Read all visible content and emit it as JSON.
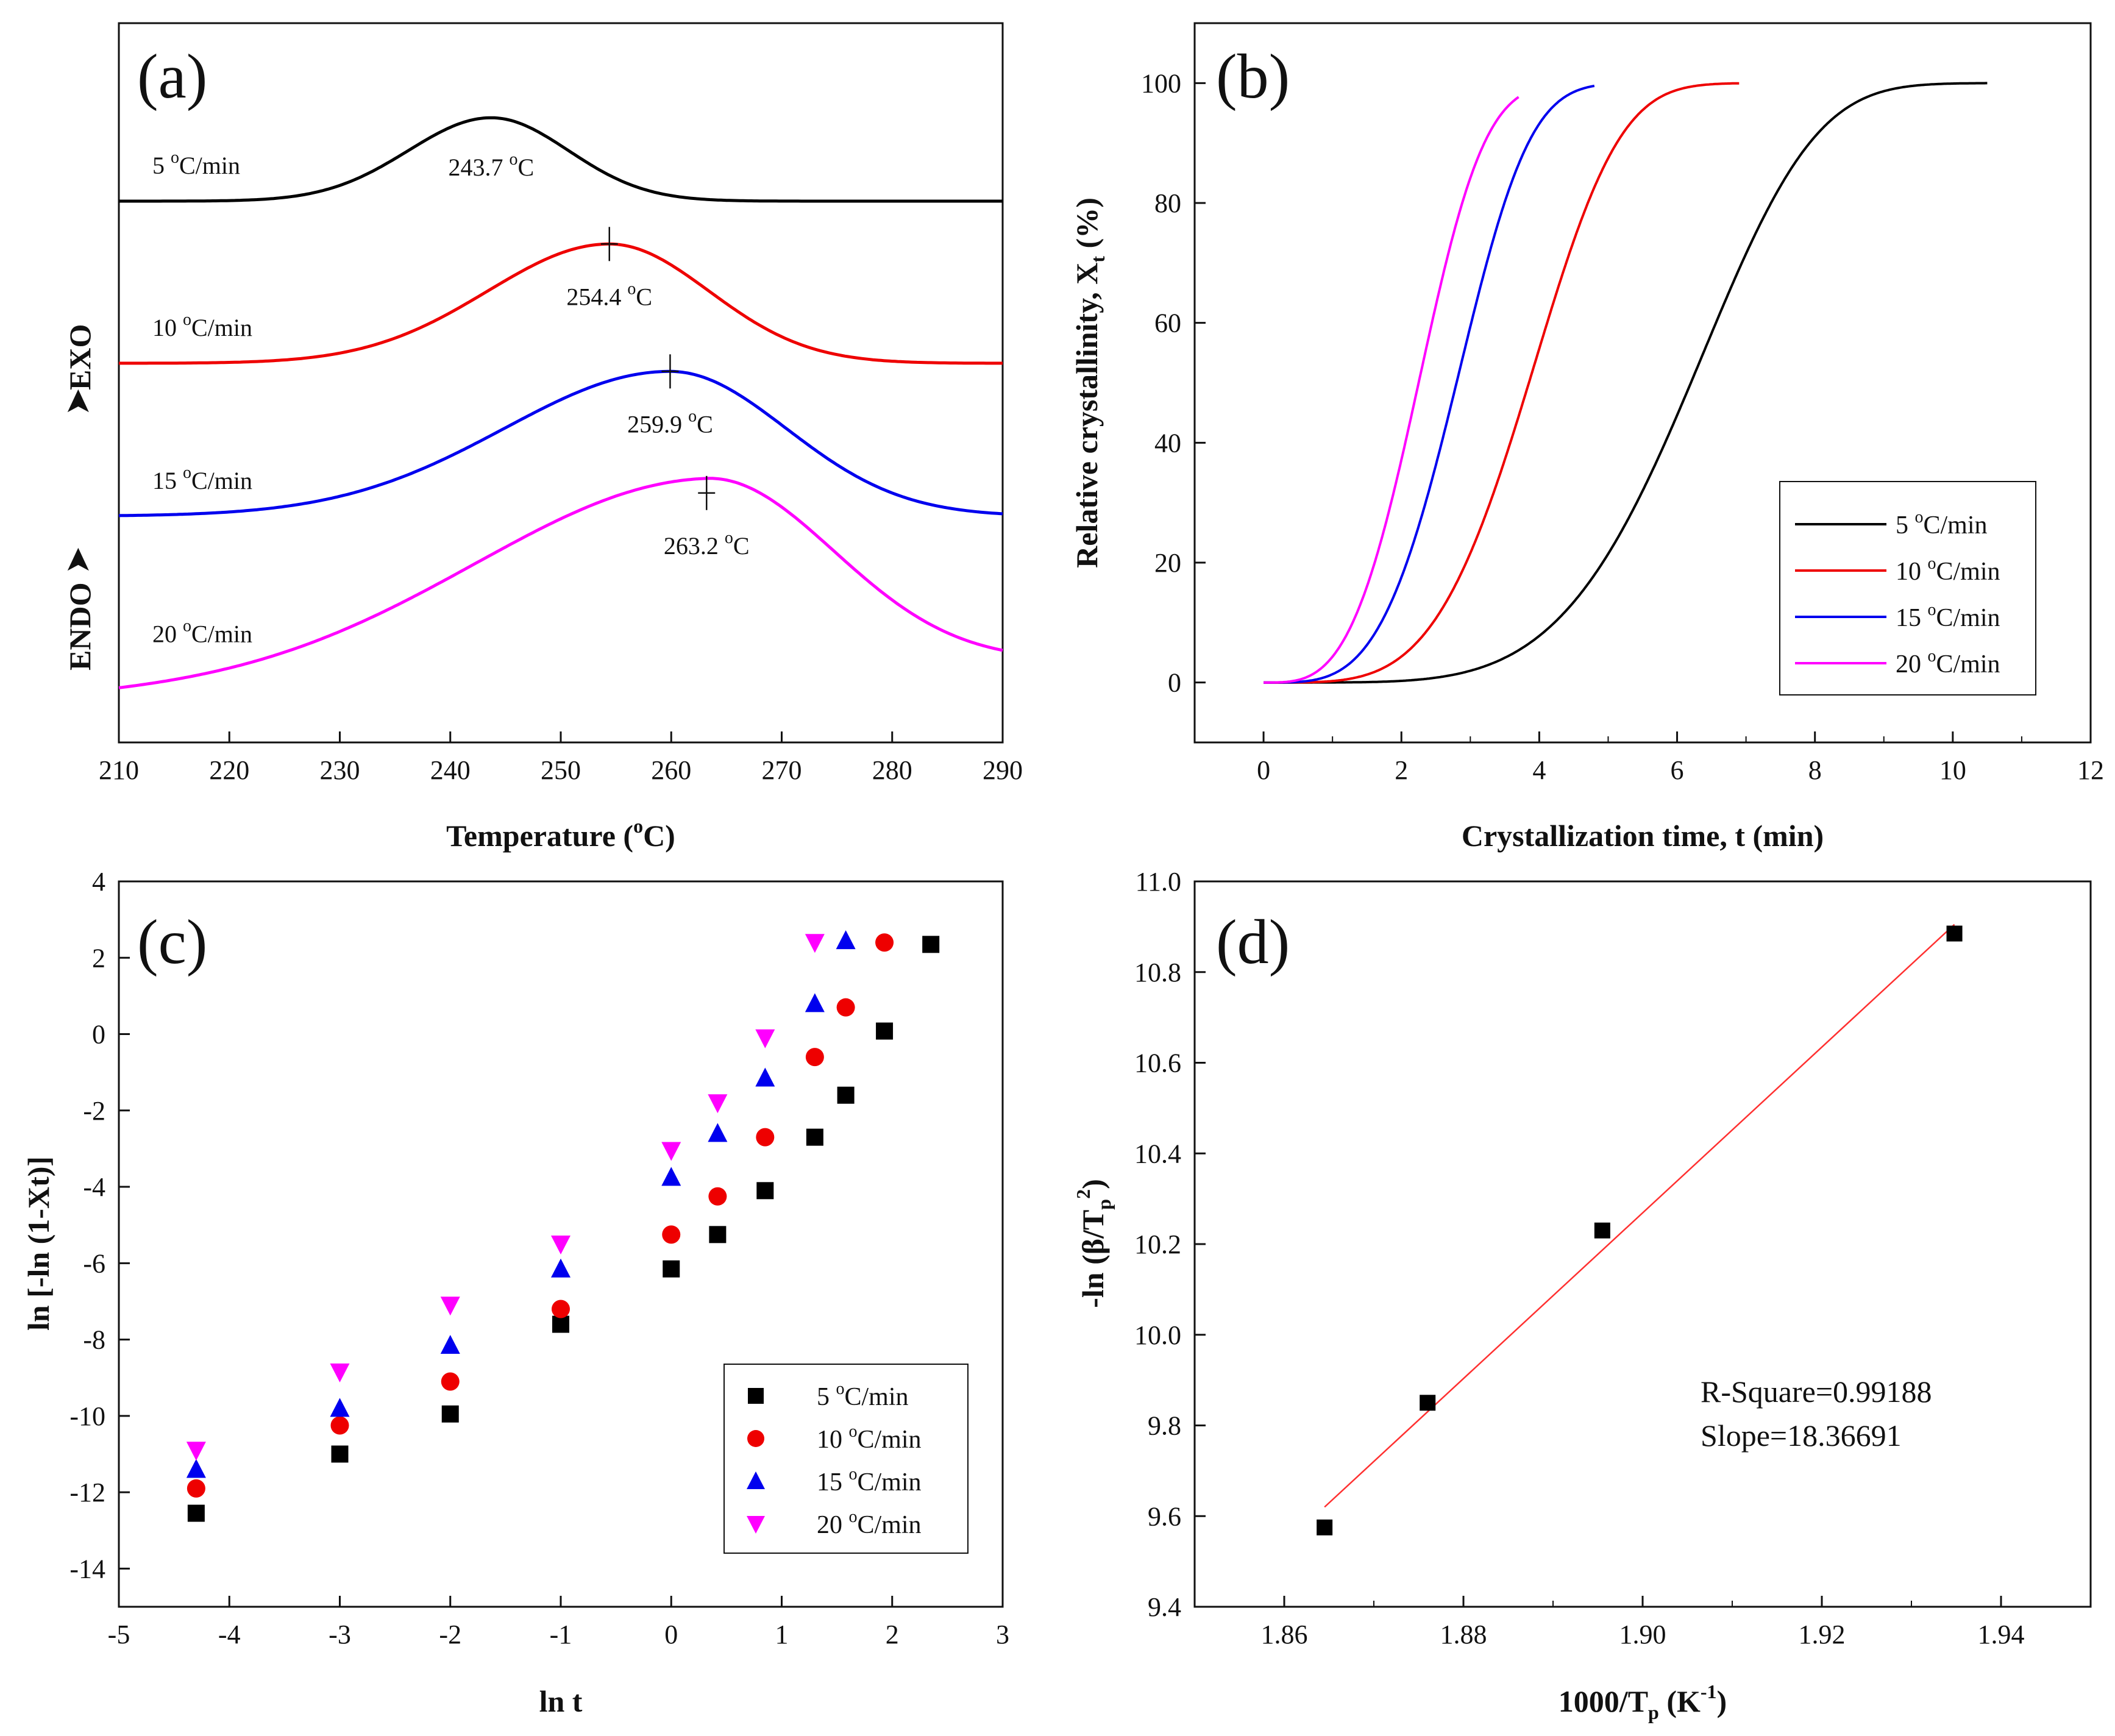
{
  "colors": {
    "5": "#000000",
    "10": "#ee0000",
    "15": "#0000ee",
    "20": "#ff00ff",
    "fit": "#ff3030",
    "axis": "#111111"
  },
  "chart_data": [
    {
      "id": "a",
      "panel_label": "(a)",
      "type": "line",
      "title": "",
      "xlabel": "Temperature (oC)",
      "ylabel": "",
      "xlim": [
        210,
        290
      ],
      "xticks": [
        "210",
        "220",
        "230",
        "240",
        "250",
        "260",
        "270",
        "280",
        "290"
      ],
      "side_label_endo": "ENDO",
      "side_label_exo": "EXO",
      "grid": false,
      "series": [
        {
          "key": "5",
          "name": "5 oC/min",
          "label": "5 °C/min",
          "baseline": 1.0,
          "peak_T": 243.7,
          "peak_label": "243.7 °C",
          "amp": 0.72,
          "sigma_left": 7.5,
          "sigma_right": 7.0,
          "show_marker": false
        },
        {
          "key": "10",
          "name": "10 oC/min",
          "label": "10 °C/min",
          "baseline": 2.4,
          "peak_T": 254.4,
          "peak_label": "254.4 °C",
          "amp": 1.03,
          "sigma_left": 11.0,
          "sigma_right": 9.0,
          "show_marker": true
        },
        {
          "key": "15",
          "name": "15 oC/min",
          "label": "15 °C/min",
          "baseline": 3.72,
          "peak_T": 259.9,
          "peak_label": "259.9 °C",
          "amp": 1.25,
          "sigma_left": 15.0,
          "sigma_right": 10.5,
          "show_marker": true
        },
        {
          "key": "20",
          "name": "20 oC/min",
          "label": "20 °C/min",
          "baseline": 5.15,
          "peak_T": 263.2,
          "peak_label": "263.2 °C",
          "amp": 1.69,
          "sigma_left": 21.0,
          "sigma_right": 11.5,
          "show_marker": true
        }
      ]
    },
    {
      "id": "b",
      "panel_label": "(b)",
      "type": "line",
      "title": "",
      "xlabel": "Crystallization time, t (min)",
      "ylabel": "Relative crystallinity, Xt (%)",
      "xlim": [
        -1,
        12
      ],
      "ylim": [
        -10,
        110
      ],
      "xticks": [
        0,
        2,
        4,
        6,
        8,
        10,
        12
      ],
      "yticks": [
        0,
        20,
        40,
        60,
        80,
        100
      ],
      "legend_position": "lower-right",
      "series": [
        {
          "key": "5",
          "name": "5 oC/min",
          "t_half": 6.2,
          "n": 4.9,
          "t_end": 10.5
        },
        {
          "key": "10",
          "name": "10 oC/min",
          "t_half": 3.85,
          "n": 4.2,
          "t_end": 6.9
        },
        {
          "key": "15",
          "name": "15 oC/min",
          "t_half": 2.8,
          "n": 3.8,
          "t_end": 4.8
        },
        {
          "key": "20",
          "name": "20 oC/min",
          "t_half": 2.25,
          "n": 3.4,
          "t_end": 3.7
        }
      ]
    },
    {
      "id": "c",
      "panel_label": "(c)",
      "type": "scatter",
      "title": "",
      "xlabel": "ln t",
      "ylabel": "ln [-ln (1-Xt)]",
      "xlim": [
        -5,
        3
      ],
      "ylim": [
        -15,
        4
      ],
      "xticks": [
        -5,
        -4,
        -3,
        -2,
        -1,
        0,
        1,
        2,
        3
      ],
      "yticks": [
        -14,
        -12,
        -10,
        -8,
        -6,
        -4,
        -2,
        0,
        2,
        4
      ],
      "legend_position": "lower-right",
      "series": [
        {
          "key": "5",
          "name": "5 oC/min",
          "marker": "square",
          "points": [
            [
              -4.3,
              -12.55
            ],
            [
              -3.0,
              -11.0
            ],
            [
              -2.0,
              -9.95
            ],
            [
              -1.0,
              -7.6
            ],
            [
              0.0,
              -6.15
            ],
            [
              0.42,
              -5.25
            ],
            [
              0.85,
              -4.1
            ],
            [
              1.3,
              -2.7
            ],
            [
              1.58,
              -1.6
            ],
            [
              1.93,
              0.08
            ],
            [
              2.35,
              2.35
            ]
          ]
        },
        {
          "key": "10",
          "name": "10 oC/min",
          "marker": "circle",
          "points": [
            [
              -4.3,
              -11.9
            ],
            [
              -3.0,
              -10.25
            ],
            [
              -2.0,
              -9.1
            ],
            [
              -1.0,
              -7.2
            ],
            [
              0.0,
              -5.25
            ],
            [
              0.42,
              -4.25
            ],
            [
              0.85,
              -2.7
            ],
            [
              1.3,
              -0.6
            ],
            [
              1.58,
              0.7
            ],
            [
              1.93,
              2.4
            ]
          ]
        },
        {
          "key": "15",
          "name": "15 oC/min",
          "marker": "triangle-up",
          "points": [
            [
              -4.3,
              -11.4
            ],
            [
              -3.0,
              -9.8
            ],
            [
              -2.0,
              -8.15
            ],
            [
              -1.0,
              -6.15
            ],
            [
              0.0,
              -3.75
            ],
            [
              0.42,
              -2.6
            ],
            [
              0.85,
              -1.15
            ],
            [
              1.3,
              0.8
            ],
            [
              1.58,
              2.45
            ]
          ]
        },
        {
          "key": "20",
          "name": "20 oC/min",
          "marker": "triangle-down",
          "points": [
            [
              -4.3,
              -10.9
            ],
            [
              -3.0,
              -8.85
            ],
            [
              -2.0,
              -7.1
            ],
            [
              -1.0,
              -5.5
            ],
            [
              0.0,
              -3.05
            ],
            [
              0.42,
              -1.8
            ],
            [
              0.85,
              -0.1
            ],
            [
              1.3,
              2.4
            ]
          ]
        }
      ]
    },
    {
      "id": "d",
      "panel_label": "(d)",
      "type": "scatter",
      "title": "",
      "xlabel": "1000/Tp (K-1)",
      "ylabel": "-ln (β/Tp2)",
      "xlim": [
        1.85,
        1.95
      ],
      "ylim": [
        9.4,
        11.0
      ],
      "xticks": [
        "1.86",
        "1.88",
        "1.90",
        "1.92",
        "1.94"
      ],
      "yticks": [
        "9.4",
        "9.6",
        "9.8",
        "10.0",
        "10.2",
        "10.4",
        "10.6",
        "10.8",
        "11.0"
      ],
      "points": [
        [
          1.8645,
          9.575
        ],
        [
          1.876,
          9.85
        ],
        [
          1.8955,
          10.23
        ],
        [
          1.9348,
          10.885
        ]
      ],
      "fit_line": [
        [
          1.8645,
          9.62
        ],
        [
          1.9348,
          10.905
        ]
      ],
      "r_square_text": "R-Square=0.99188",
      "slope_text": "Slope=18.36691"
    }
  ]
}
